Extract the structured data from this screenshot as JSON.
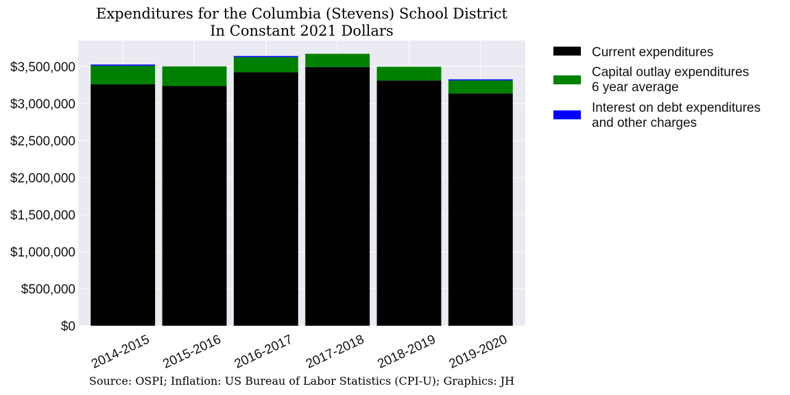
{
  "chart_data": {
    "type": "bar",
    "stacked": true,
    "title": "Expenditures for the Columbia (Stevens) School District",
    "subtitle": "In Constant 2021 Dollars",
    "caption": "Source: OSPI; Inflation: US Bureau of Labor Statistics (CPI-U); Graphics: JH",
    "xlabel": "",
    "ylabel": "",
    "categories": [
      "2014-2015",
      "2015-2016",
      "2016-2017",
      "2017-2018",
      "2018-2019",
      "2019-2020"
    ],
    "series": [
      {
        "name": "Current expenditures",
        "color": "#000000",
        "values": [
          3260000,
          3235000,
          3420000,
          3490000,
          3310000,
          3135000
        ]
      },
      {
        "name": "Capital outlay expenditures\n6 year average",
        "color": "#008000",
        "values": [
          250000,
          265000,
          205000,
          180000,
          185000,
          175000
        ]
      },
      {
        "name": "Interest on debt expenditures\nand other charges",
        "color": "#0000ff",
        "values": [
          15000,
          0,
          15000,
          0,
          0,
          15000
        ]
      }
    ],
    "ylim": [
      0,
      3850000
    ],
    "yticks": [
      0,
      500000,
      1000000,
      1500000,
      2000000,
      2500000,
      3000000,
      3500000
    ],
    "ytick_labels": [
      "$0",
      "$500,000",
      "$1,000,000",
      "$1,500,000",
      "$2,000,000",
      "$2,500,000",
      "$3,000,000",
      "$3,500,000"
    ],
    "grid": true,
    "legend_position": "outside-right-top",
    "background_color": "#eaeaf2"
  }
}
